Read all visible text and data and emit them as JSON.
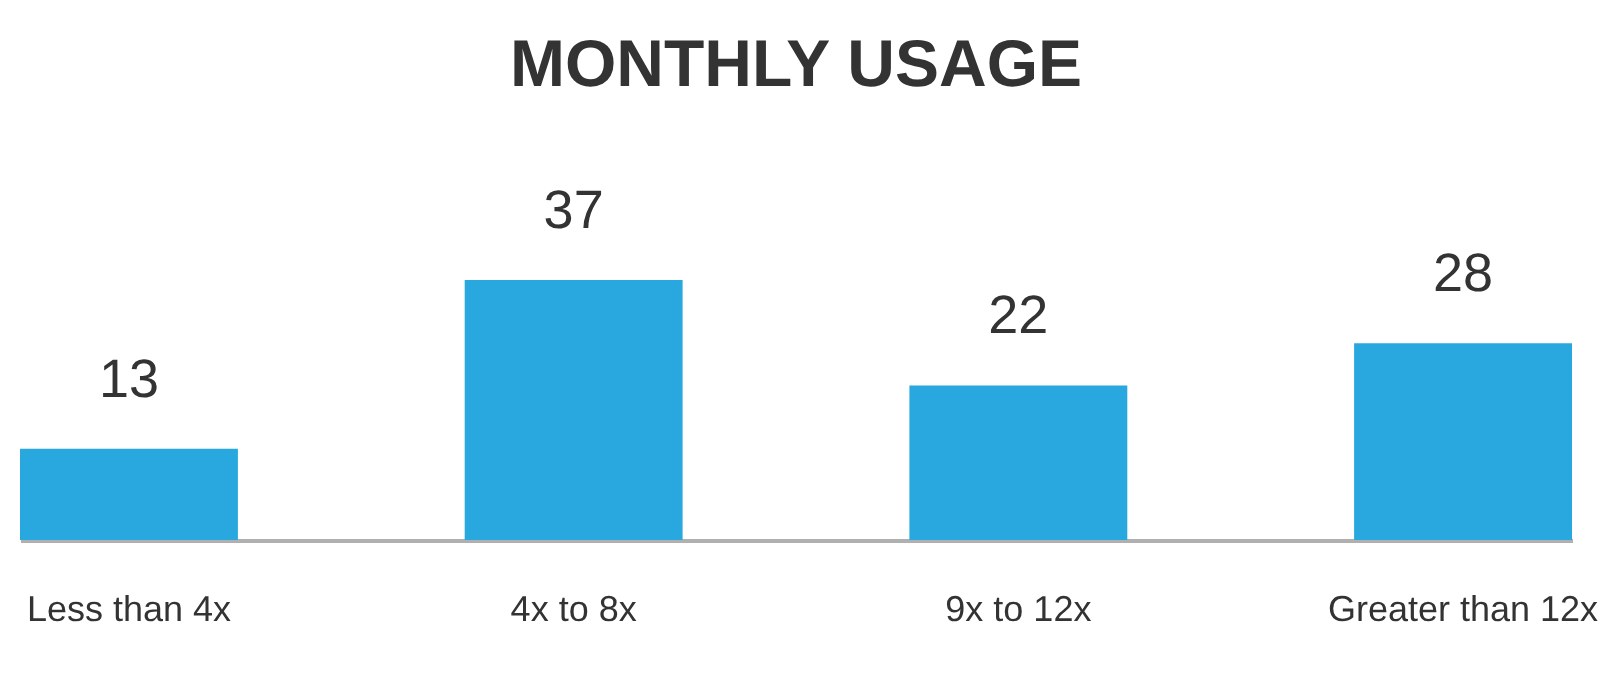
{
  "chart_data": {
    "type": "bar",
    "title": "MONTHLY USAGE",
    "categories": [
      "Less than 4x",
      "4x to 8x",
      "9x to 12x",
      "Greater than 12x"
    ],
    "values": [
      13,
      37,
      22,
      28
    ],
    "color": "#29a8e0",
    "data_labels": true
  }
}
